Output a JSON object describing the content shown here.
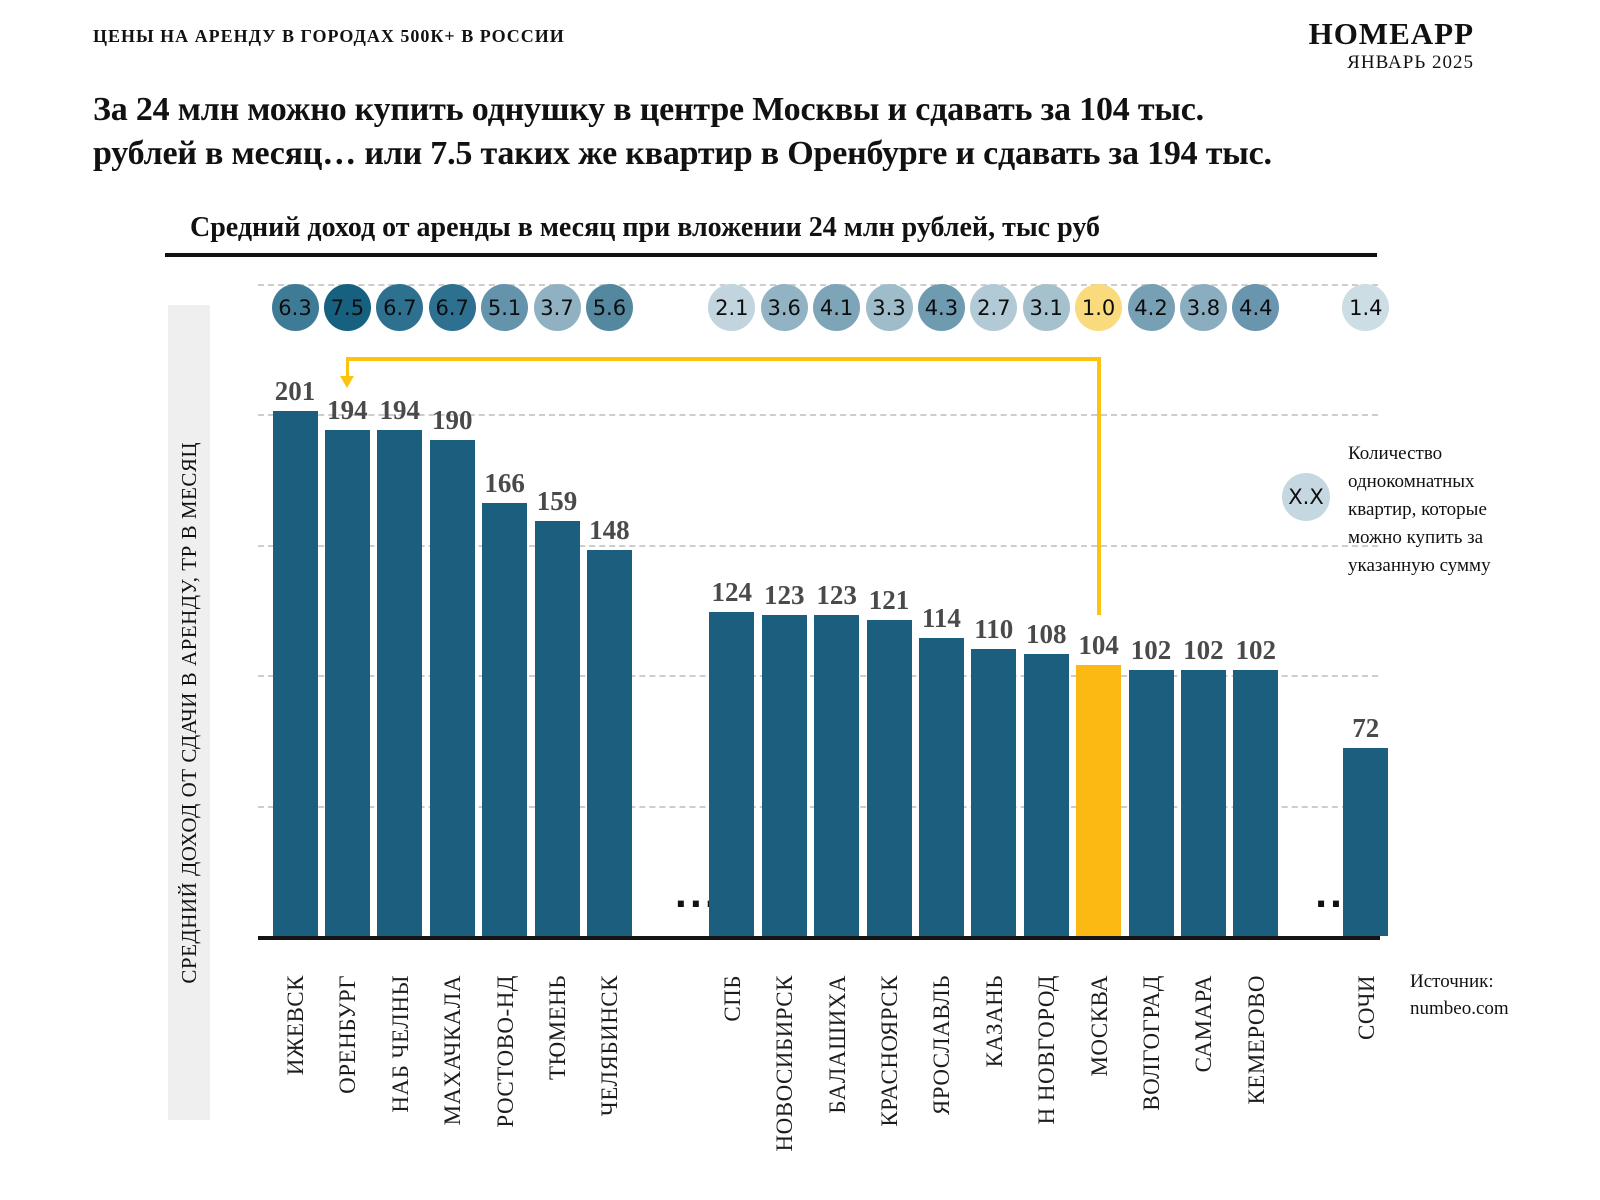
{
  "header": {
    "tagline": "ЦЕНЫ НА АРЕНДУ В ГОРОДАХ 500К+ В РОССИИ",
    "brand": "HOMEAPP",
    "date": "ЯНВАРЬ 2025"
  },
  "headline": {
    "line1": "За 24 млн можно купить однушку в центре Москвы и сдавать за 104 тыс.",
    "line2": "рублей в месяц… или 7.5 таких же квартир в Оренбурге и сдавать за 194 тыс."
  },
  "chart_data": {
    "type": "bar",
    "title": "Средний доход от аренды в месяц при вложении 24 млн рублей, тыс руб",
    "ylabel": "СРЕДНИЙ ДОХОД ОТ СДАЧИ В АРЕНДУ, ТР В МЕСЯЦ",
    "ylim": [
      0,
      250
    ],
    "grid_step": 50,
    "grid": true,
    "categories": [
      "ИЖЕВСК",
      "ОРЕНБУРГ",
      "НАБ ЧЕЛНЫ",
      "МАХАЧКАЛА",
      "РОСТОВО-НД",
      "ТЮМЕНЬ",
      "ЧЕЛЯБИНСК",
      "СПБ",
      "НОВОСИБИРСК",
      "БАЛАШИХА",
      "КРАСНОЯРСК",
      "ЯРОСЛАВЛЬ",
      "КАЗАНЬ",
      "Н НОВГОРОД",
      "МОСКВА",
      "ВОЛГОГРАД",
      "САМАРА",
      "КЕМЕРОВО",
      "СОЧИ"
    ],
    "series": [
      {
        "name": "Доход от аренды, тыс руб в месяц",
        "values": [
          201,
          194,
          194,
          190,
          166,
          159,
          148,
          124,
          123,
          123,
          121,
          114,
          110,
          108,
          104,
          102,
          102,
          102,
          72
        ]
      },
      {
        "name": "Количество однокомнатных квартир",
        "values": [
          "6.3",
          "7.5",
          "6.7",
          "6.7",
          "5.1",
          "3.7",
          "5.6",
          "2.1",
          "3.6",
          "4.1",
          "3.3",
          "4.3",
          "2.7",
          "3.1",
          "1.0",
          "4.2",
          "3.8",
          "4.4",
          "1.4"
        ]
      }
    ],
    "circle_colors": [
      "#3e7b97",
      "#16617f",
      "#2e7090",
      "#2e7090",
      "#6494ac",
      "#8fb1c2",
      "#54889f",
      "#c2d5de",
      "#92b3c4",
      "#7ea4b8",
      "#9fbcca",
      "#6f9bb1",
      "#b1cad5",
      "#a5c1cd",
      "#f9db7d",
      "#77a0b5",
      "#8aadbf",
      "#6996ae",
      "#cddde4"
    ],
    "gaps_after": [
      "ЧЕЛЯБИНСК",
      "КЕМЕРОВО"
    ],
    "gap_symbol": "...",
    "highlight_category": "МОСКВА",
    "annotation_arrow": {
      "from": "МОСКВА",
      "to": "ОРЕНБУРГ",
      "color": "#fcc30f"
    },
    "colors": {
      "bar": "#1b5e7e",
      "highlight_bar": "#fcb813",
      "value_label": "#4a4a4a",
      "gridline": "#cdcdcd",
      "axis": "#141414",
      "y_band": "#efefef"
    }
  },
  "legend": {
    "symbol": "X.X",
    "symbol_color": "#c5d8e1",
    "text": "Количество однокомнатных квартир, которые можно купить за указанную сумму"
  },
  "source": {
    "label": "Источник:",
    "value": "numbeo.com"
  }
}
